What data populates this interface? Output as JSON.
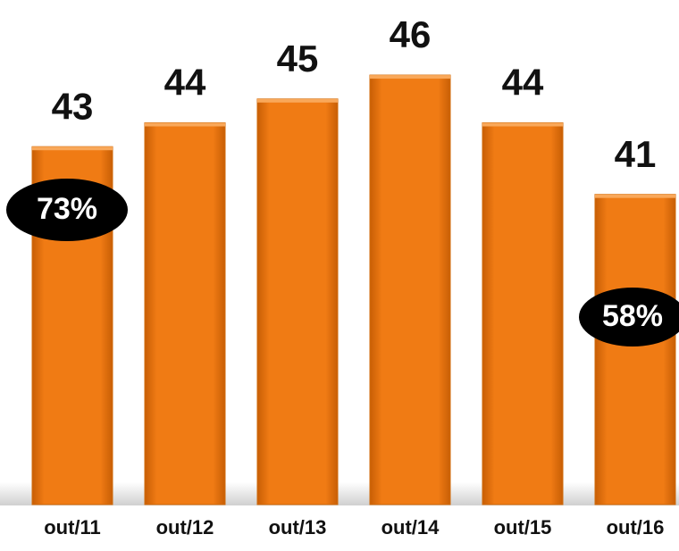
{
  "chart_data": {
    "type": "bar",
    "categories": [
      "out/11",
      "out/12",
      "out/13",
      "out/14",
      "out/15",
      "out/16"
    ],
    "values": [
      43,
      44,
      45,
      46,
      44,
      41
    ],
    "color": "#f07b14",
    "ylim": [
      28,
      47.5
    ],
    "annotations": [
      "73%",
      "58%"
    ]
  }
}
